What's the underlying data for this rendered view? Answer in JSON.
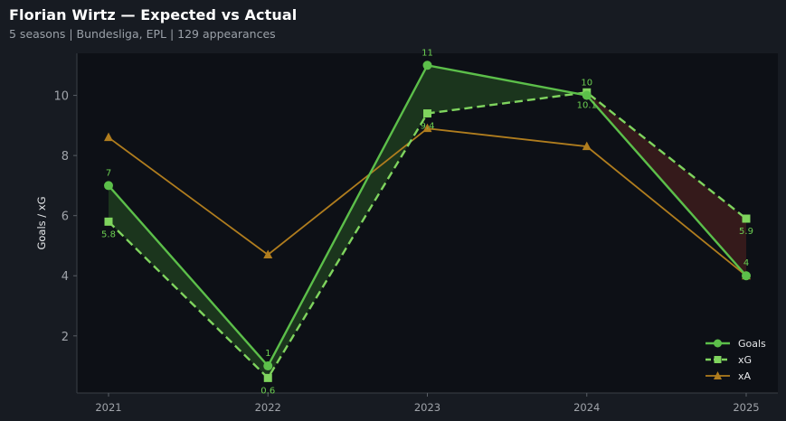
{
  "header": {
    "title": "Florian Wirtz — Expected vs Actual",
    "subtitle": "5 seasons | Bundesliga, EPL | 129 appearances"
  },
  "colors": {
    "background": "#171b22",
    "plot_background": "#0d1016",
    "goals": "#5cbf4a",
    "xg": "#7fd45e",
    "xa": "#b07d1e",
    "over_fill": "#1d3a1e",
    "under_fill": "#3a1c1c",
    "axis_text": "#a0a4aa",
    "label_green": "#6ccf52"
  },
  "chart_data": {
    "type": "line",
    "categories": [
      "2021",
      "2022",
      "2023",
      "2024",
      "2025"
    ],
    "ylabel": "Goals / xG",
    "xlabel": "",
    "ylim": [
      0.1,
      11.4
    ],
    "yticks": [
      2,
      4,
      6,
      8,
      10
    ],
    "grid": false,
    "legend_position": "bottom-right",
    "series": [
      {
        "name": "Goals",
        "key": "goals",
        "marker": "circle",
        "style": "solid",
        "values": [
          7,
          1,
          11,
          10,
          4
        ],
        "labels": [
          "7",
          "1",
          "11",
          "10",
          "4"
        ]
      },
      {
        "name": "xG",
        "key": "xg",
        "marker": "square",
        "style": "dashed",
        "values": [
          5.8,
          0.6,
          9.4,
          10.1,
          5.9
        ],
        "labels": [
          "5.8",
          "0.6",
          "9.4",
          "10.1",
          "5.9"
        ]
      },
      {
        "name": "xA",
        "key": "xa",
        "marker": "triangle",
        "style": "solid",
        "values": [
          8.6,
          4.7,
          8.9,
          8.3,
          4.0
        ]
      }
    ]
  }
}
